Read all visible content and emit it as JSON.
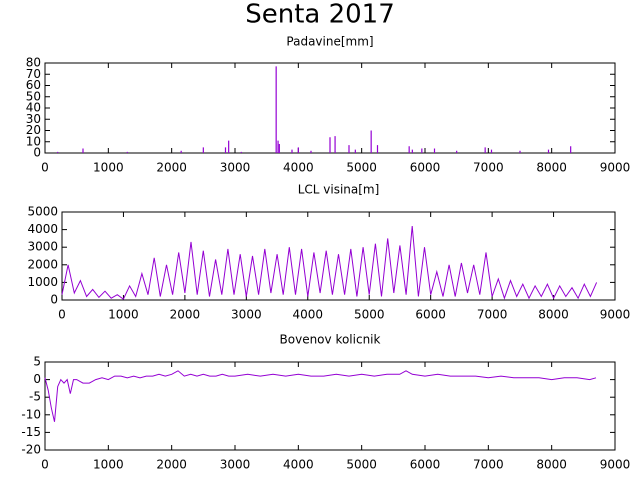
{
  "title": "Senta 2017",
  "chart_data": [
    {
      "type": "bar",
      "title": "Padavine[mm]",
      "color": "#9400d3",
      "x": [
        200,
        600,
        1300,
        2150,
        2500,
        2850,
        2900,
        3100,
        3650,
        3680,
        3700,
        3900,
        4000,
        4200,
        4500,
        4580,
        4800,
        4900,
        5150,
        5250,
        5750,
        5800,
        5950,
        6150,
        6500,
        6950,
        7050,
        7500,
        7950,
        8300
      ],
      "values": [
        1,
        4,
        1,
        2,
        5,
        5,
        11,
        1,
        77,
        11,
        8,
        3,
        5,
        2,
        14,
        15,
        7,
        3,
        20,
        7,
        6,
        3,
        4,
        4,
        2,
        5,
        3,
        2,
        3,
        6
      ],
      "xlim": [
        0,
        9000
      ],
      "ylim": [
        0,
        80
      ],
      "xticks": [
        0,
        1000,
        2000,
        3000,
        4000,
        5000,
        6000,
        7000,
        8000,
        9000
      ],
      "yticks": [
        0,
        10,
        20,
        30,
        40,
        50,
        60,
        70,
        80
      ]
    },
    {
      "type": "line",
      "title": "LCL visina[m]",
      "color": "#9400d3",
      "x": [
        0,
        100,
        200,
        300,
        400,
        500,
        600,
        700,
        800,
        900,
        1000,
        1100,
        1200,
        1300,
        1400,
        1500,
        1600,
        1700,
        1800,
        1900,
        2000,
        2100,
        2200,
        2300,
        2400,
        2500,
        2600,
        2700,
        2800,
        2900,
        3000,
        3100,
        3200,
        3300,
        3400,
        3500,
        3600,
        3700,
        3800,
        3900,
        4000,
        4100,
        4200,
        4300,
        4400,
        4500,
        4600,
        4700,
        4800,
        4900,
        5000,
        5100,
        5200,
        5300,
        5400,
        5500,
        5600,
        5700,
        5800,
        5900,
        6000,
        6100,
        6200,
        6300,
        6400,
        6500,
        6600,
        6700,
        6800,
        6900,
        7000,
        7100,
        7200,
        7300,
        7400,
        7500,
        7600,
        7700,
        7800,
        7900,
        8000,
        8100,
        8200,
        8300,
        8400,
        8500,
        8600,
        8700
      ],
      "values": [
        300,
        2000,
        400,
        1100,
        200,
        600,
        150,
        500,
        100,
        300,
        50,
        800,
        200,
        1500,
        300,
        2400,
        200,
        2000,
        300,
        2700,
        400,
        3300,
        300,
        2800,
        200,
        2300,
        300,
        2900,
        300,
        2600,
        200,
        2500,
        300,
        2900,
        400,
        2600,
        300,
        3000,
        300,
        2900,
        200,
        2700,
        400,
        2800,
        300,
        2600,
        300,
        2900,
        200,
        3000,
        300,
        3200,
        200,
        3500,
        400,
        3100,
        300,
        4200,
        200,
        3000,
        300,
        1600,
        200,
        2000,
        200,
        2100,
        400,
        2000,
        300,
        2700,
        200,
        1200,
        100,
        1100,
        200,
        900,
        100,
        800,
        200,
        900,
        100,
        800,
        200,
        700,
        100,
        900,
        200,
        1000
      ],
      "xlim": [
        0,
        9000
      ],
      "ylim": [
        0,
        5000
      ],
      "xticks": [
        0,
        1000,
        2000,
        3000,
        4000,
        5000,
        6000,
        7000,
        8000,
        9000
      ],
      "yticks": [
        0,
        1000,
        2000,
        3000,
        4000,
        5000
      ]
    },
    {
      "type": "line",
      "title": "Bovenov kolicnik",
      "color": "#9400d3",
      "x": [
        0,
        50,
        100,
        150,
        200,
        250,
        300,
        350,
        400,
        450,
        500,
        600,
        700,
        800,
        900,
        1000,
        1100,
        1200,
        1300,
        1400,
        1500,
        1600,
        1700,
        1800,
        1900,
        2000,
        2100,
        2200,
        2300,
        2400,
        2500,
        2600,
        2700,
        2800,
        2900,
        3000,
        3200,
        3400,
        3600,
        3800,
        4000,
        4200,
        4400,
        4600,
        4800,
        5000,
        5200,
        5400,
        5600,
        5700,
        5800,
        6000,
        6200,
        6400,
        6600,
        6800,
        7000,
        7200,
        7400,
        7600,
        7800,
        8000,
        8200,
        8400,
        8600,
        8700
      ],
      "values": [
        0.5,
        -3,
        -8,
        -12,
        -2,
        0,
        -1,
        0,
        -4,
        0,
        0,
        -1,
        -1,
        0,
        0.5,
        0,
        1,
        1,
        0.5,
        1,
        0.5,
        1,
        1,
        1.5,
        1,
        1.5,
        2.5,
        1,
        1.5,
        1,
        1.5,
        1,
        1,
        1.5,
        1,
        1,
        1.5,
        1,
        1.5,
        1,
        1.5,
        1,
        1,
        1.5,
        1,
        1.5,
        1,
        1.5,
        1.5,
        2.5,
        1.5,
        1,
        1.5,
        1,
        1,
        1,
        0.5,
        1,
        0.5,
        0.5,
        0.5,
        0,
        0.5,
        0.5,
        0,
        0.5
      ],
      "xlim": [
        0,
        9000
      ],
      "ylim": [
        -20,
        5
      ],
      "xticks": [
        0,
        1000,
        2000,
        3000,
        4000,
        5000,
        6000,
        7000,
        8000,
        9000
      ],
      "yticks": [
        -20,
        -15,
        -10,
        -5,
        0,
        5
      ]
    }
  ]
}
